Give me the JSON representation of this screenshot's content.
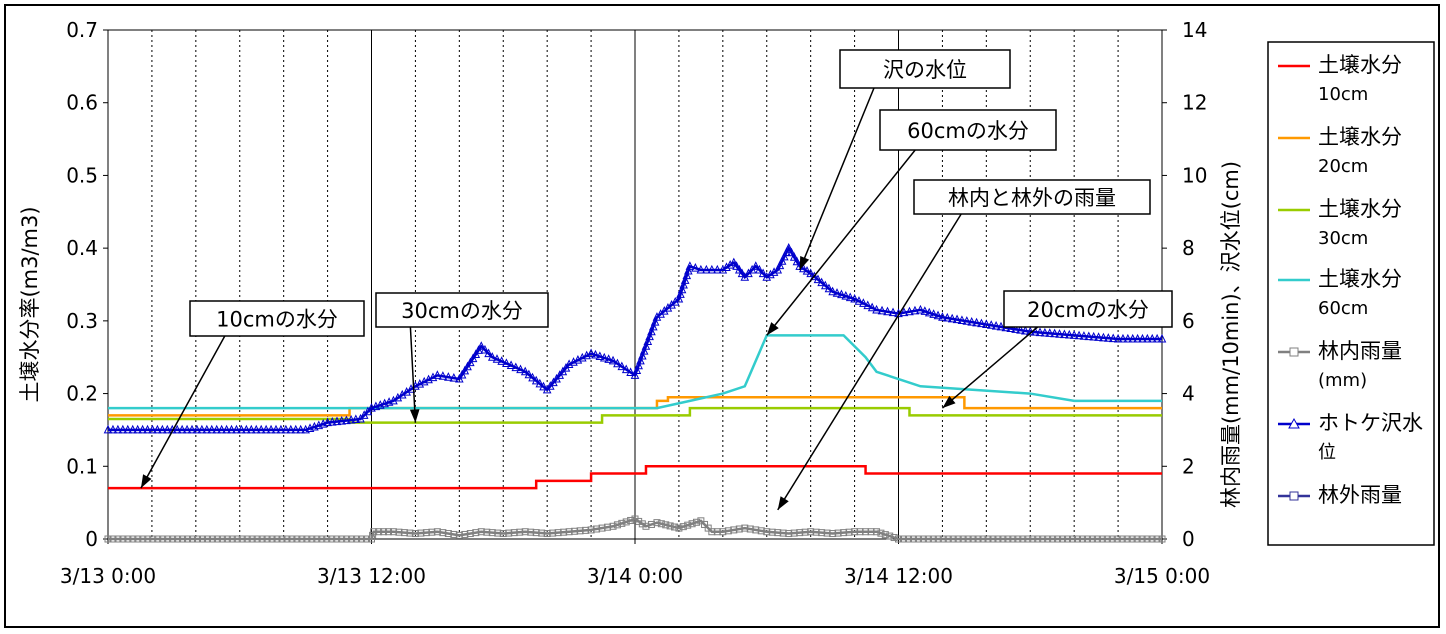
{
  "chart_data": {
    "type": "line",
    "ylabel": "土壌水分率(m3/m3)",
    "y2label": "林内雨量(mm/10min)、沢水位(cm)",
    "ylim": [
      0,
      0.7
    ],
    "y2lim": [
      0,
      14
    ],
    "yticks": [
      "0",
      "0.1",
      "0.2",
      "0.3",
      "0.4",
      "0.5",
      "0.6",
      "0.7"
    ],
    "y2ticks": [
      "0",
      "2",
      "4",
      "6",
      "8",
      "10",
      "12",
      "14"
    ],
    "xticks": [
      "3/13 0:00",
      "3/13 12:00",
      "3/14 0:00",
      "3/14 12:00",
      "3/15 0:00"
    ],
    "xlim_hours": [
      0,
      48
    ],
    "grid": true,
    "legend_position": "right",
    "series": [
      {
        "legend_lines": [
          "土壌水分",
          "10cm"
        ],
        "color": "#ff0000",
        "axis": "left",
        "marker": "none",
        "steps": [
          [
            0,
            0.07
          ],
          [
            19.5,
            0.08
          ],
          [
            22,
            0.09
          ],
          [
            24.5,
            0.1
          ],
          [
            34.5,
            0.09
          ],
          [
            48,
            0.09
          ]
        ]
      },
      {
        "legend_lines": [
          "土壌水分",
          "20cm"
        ],
        "color": "#ff9900",
        "axis": "left",
        "marker": "none",
        "steps": [
          [
            0,
            0.17
          ],
          [
            11,
            0.18
          ],
          [
            25,
            0.19
          ],
          [
            25.5,
            0.195
          ],
          [
            36,
            0.195
          ],
          [
            39,
            0.18
          ],
          [
            48,
            0.18
          ]
        ]
      },
      {
        "legend_lines": [
          "土壌水分",
          "30cm"
        ],
        "color": "#99cc00",
        "axis": "left",
        "marker": "none",
        "steps": [
          [
            0,
            0.165
          ],
          [
            11,
            0.16
          ],
          [
            22.5,
            0.17
          ],
          [
            26.5,
            0.18
          ],
          [
            36,
            0.18
          ],
          [
            36.5,
            0.17
          ],
          [
            48,
            0.17
          ]
        ]
      },
      {
        "legend_lines": [
          "土壌水分",
          "60cm"
        ],
        "color": "#33cccc",
        "axis": "left",
        "marker": "none",
        "line": [
          [
            0,
            0.18
          ],
          [
            25,
            0.18
          ],
          [
            26.5,
            0.19
          ],
          [
            28,
            0.2
          ],
          [
            29,
            0.21
          ],
          [
            30,
            0.28
          ],
          [
            33.5,
            0.28
          ],
          [
            34.5,
            0.25
          ],
          [
            35,
            0.23
          ],
          [
            37,
            0.21
          ],
          [
            42,
            0.2
          ],
          [
            44,
            0.19
          ],
          [
            48,
            0.19
          ]
        ]
      },
      {
        "legend_lines": [
          "林内雨量",
          "(mm)"
        ],
        "color": "#808080",
        "axis": "right",
        "marker": "square",
        "line": [
          [
            0,
            0
          ],
          [
            12,
            0
          ],
          [
            12.1,
            0.2
          ],
          [
            13,
            0.2
          ],
          [
            14,
            0.15
          ],
          [
            15,
            0.2
          ],
          [
            16,
            0.1
          ],
          [
            17,
            0.2
          ],
          [
            18,
            0.15
          ],
          [
            19,
            0.2
          ],
          [
            20,
            0.15
          ],
          [
            21,
            0.2
          ],
          [
            22,
            0.25
          ],
          [
            23,
            0.35
          ],
          [
            24,
            0.55
          ],
          [
            24.5,
            0.35
          ],
          [
            25,
            0.45
          ],
          [
            26,
            0.3
          ],
          [
            27,
            0.5
          ],
          [
            27.5,
            0.2
          ],
          [
            28,
            0.2
          ],
          [
            29,
            0.3
          ],
          [
            30,
            0.2
          ],
          [
            31,
            0.15
          ],
          [
            32,
            0.2
          ],
          [
            33,
            0.15
          ],
          [
            34,
            0.2
          ],
          [
            35,
            0.2
          ],
          [
            36,
            0
          ],
          [
            48,
            0
          ]
        ]
      },
      {
        "legend_lines": [
          "ホトケ沢水",
          "位"
        ],
        "color": "#0000cc",
        "axis": "right",
        "marker": "triangle",
        "line": [
          [
            0,
            3.0
          ],
          [
            9,
            3.0
          ],
          [
            10,
            3.2
          ],
          [
            11.5,
            3.3
          ],
          [
            12,
            3.6
          ],
          [
            13,
            3.8
          ],
          [
            14,
            4.2
          ],
          [
            15,
            4.5
          ],
          [
            16,
            4.4
          ],
          [
            17,
            5.3
          ],
          [
            17.5,
            5.0
          ],
          [
            19,
            4.6
          ],
          [
            20,
            4.1
          ],
          [
            21,
            4.8
          ],
          [
            22,
            5.1
          ],
          [
            23,
            4.9
          ],
          [
            24,
            4.5
          ],
          [
            25,
            6.1
          ],
          [
            26,
            6.6
          ],
          [
            26.5,
            7.5
          ],
          [
            27,
            7.4
          ],
          [
            28,
            7.4
          ],
          [
            28.5,
            7.6
          ],
          [
            29,
            7.2
          ],
          [
            29.5,
            7.5
          ],
          [
            30,
            7.2
          ],
          [
            30.5,
            7.4
          ],
          [
            31,
            8.0
          ],
          [
            31.5,
            7.5
          ],
          [
            32,
            7.3
          ],
          [
            33,
            6.8
          ],
          [
            34,
            6.6
          ],
          [
            35,
            6.3
          ],
          [
            36,
            6.2
          ],
          [
            37,
            6.3
          ],
          [
            38,
            6.1
          ],
          [
            40,
            5.9
          ],
          [
            42,
            5.7
          ],
          [
            44,
            5.6
          ],
          [
            46,
            5.5
          ],
          [
            48,
            5.5
          ]
        ]
      },
      {
        "legend_lines": [
          "林外雨量"
        ],
        "color": "#333399",
        "axis": "right",
        "marker": "square",
        "line": []
      }
    ],
    "annotations": [
      {
        "text": "10cmの水分",
        "target": [
          1.5,
          0.07
        ]
      },
      {
        "text": "30cmの水分",
        "target": [
          14,
          0.16
        ]
      },
      {
        "text": "沢の水位",
        "target": [
          31.5,
          0.37
        ]
      },
      {
        "text": "60cmの水分",
        "target": [
          30,
          0.28
        ]
      },
      {
        "text": "林内と林外の雨量",
        "target": [
          30.5,
          0.04
        ]
      },
      {
        "text": "20cmの水分",
        "target": [
          38,
          0.18
        ]
      }
    ]
  }
}
